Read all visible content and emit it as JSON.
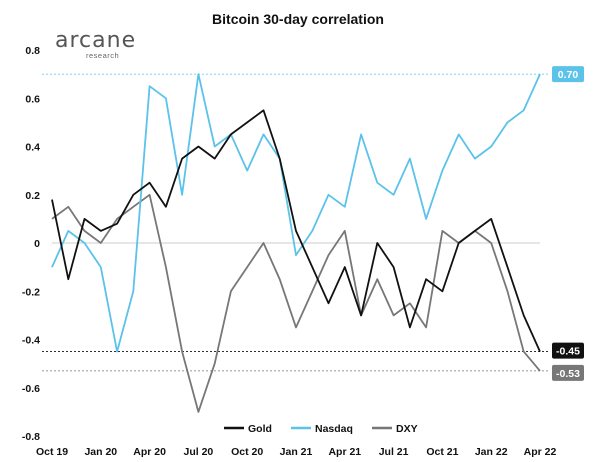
{
  "brand": {
    "name": "arcane",
    "sub": "research"
  },
  "chart_data": {
    "type": "line",
    "title": "Bitcoin 30-day correlation",
    "xlabel": "",
    "ylabel": "",
    "ylim": [
      -0.8,
      0.8
    ],
    "yticks": [
      "0.8",
      "0.6",
      "0.4",
      "0.2",
      "0",
      "-0.2",
      "-0.4",
      "-0.6",
      "-0.8"
    ],
    "yticks_values": [
      0.8,
      0.6,
      0.4,
      0.2,
      0,
      -0.2,
      -0.4,
      -0.6,
      -0.8
    ],
    "xticks": [
      "Oct 19",
      "Jan 20",
      "Apr 20",
      "Jul 20",
      "Oct 20",
      "Jan 21",
      "Apr 21",
      "Jul 21",
      "Oct 21",
      "Jan 22",
      "Apr 22"
    ],
    "x": [
      "Oct 19",
      "Nov 19",
      "Dec 19",
      "Jan 20",
      "Feb 20",
      "Mar 20",
      "Apr 20",
      "May 20",
      "Jun 20",
      "Jul 20",
      "Aug 20",
      "Sep 20",
      "Oct 20",
      "Nov 20",
      "Dec 20",
      "Jan 21",
      "Feb 21",
      "Mar 21",
      "Apr 21",
      "May 21",
      "Jun 21",
      "Jul 21",
      "Aug 21",
      "Sep 21",
      "Oct 21",
      "Nov 21",
      "Dec 21",
      "Jan 22",
      "Feb 22",
      "Mar 22",
      "Apr 22"
    ],
    "series": [
      {
        "name": "Gold",
        "color": "#111111",
        "values": [
          0.18,
          -0.15,
          0.1,
          0.05,
          0.08,
          0.2,
          0.25,
          0.15,
          0.35,
          0.4,
          0.35,
          0.45,
          0.5,
          0.55,
          0.35,
          0.05,
          -0.1,
          -0.25,
          -0.1,
          -0.3,
          0.0,
          -0.1,
          -0.35,
          -0.15,
          -0.2,
          0.0,
          0.05,
          0.1,
          -0.1,
          -0.3,
          -0.45
        ]
      },
      {
        "name": "Nasdaq",
        "color": "#5bc2ea",
        "values": [
          -0.1,
          0.05,
          0.0,
          -0.1,
          -0.45,
          -0.2,
          0.65,
          0.6,
          0.2,
          0.7,
          0.4,
          0.45,
          0.3,
          0.45,
          0.35,
          -0.05,
          0.05,
          0.2,
          0.15,
          0.45,
          0.25,
          0.2,
          0.35,
          0.1,
          0.3,
          0.45,
          0.35,
          0.4,
          0.5,
          0.55,
          0.7
        ]
      },
      {
        "name": "DXY",
        "color": "#777777",
        "values": [
          0.1,
          0.15,
          0.05,
          0.0,
          0.1,
          0.15,
          0.2,
          -0.1,
          -0.45,
          -0.7,
          -0.5,
          -0.2,
          -0.1,
          0.0,
          -0.15,
          -0.35,
          -0.2,
          -0.05,
          0.05,
          -0.3,
          -0.15,
          -0.3,
          -0.25,
          -0.35,
          0.05,
          0.0,
          0.05,
          0.0,
          -0.2,
          -0.45,
          -0.53
        ]
      }
    ],
    "end_labels": [
      {
        "series": "Nasdaq",
        "label": "0.70",
        "value": 0.7,
        "color": "#5bc2ea"
      },
      {
        "series": "Gold",
        "label": "-0.45",
        "value": -0.45,
        "color": "#111111"
      },
      {
        "series": "DXY",
        "label": "-0.53",
        "value": -0.53,
        "color": "#777777"
      }
    ],
    "legend_position": "bottom-center",
    "grid": false
  }
}
